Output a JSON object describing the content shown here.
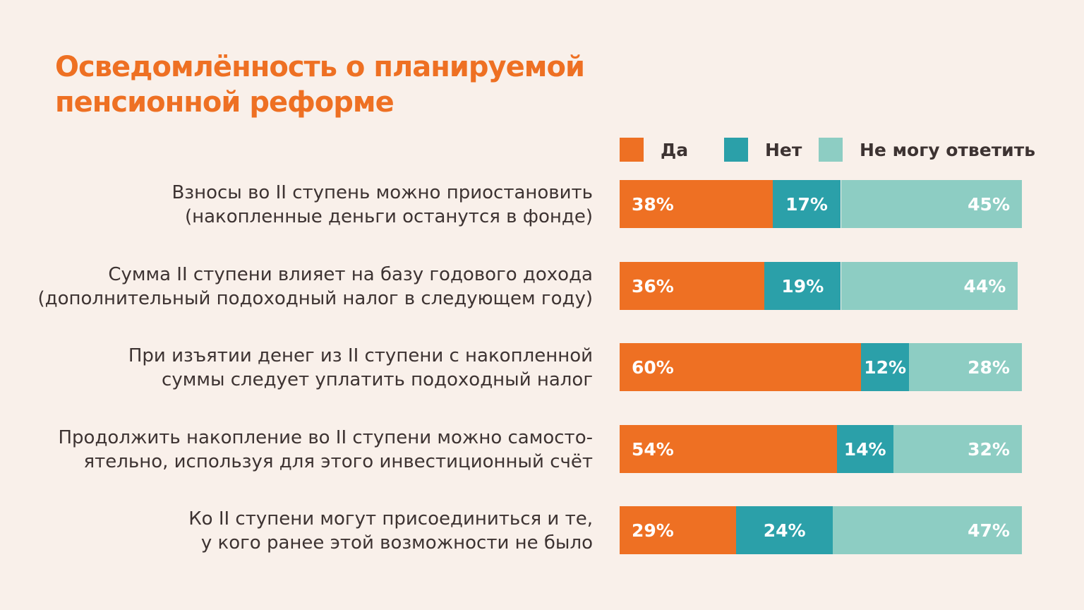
{
  "title": {
    "line1": "Осведомлённость о планируемой",
    "line2": "пенсионной реформе"
  },
  "colors": {
    "yes": "#ee7023",
    "no": "#2ba0a9",
    "unsure": "#8dcdc3",
    "background": "#f9f0ea",
    "title": "#ee7023",
    "text": "#3d3332"
  },
  "legend": [
    {
      "label": "Да",
      "color": "#ee7023"
    },
    {
      "label": "Нет",
      "color": "#2ba0a9"
    },
    {
      "label": "Не могу ответить",
      "color": "#8dcdc3"
    }
  ],
  "chart_data": {
    "type": "bar",
    "orientation": "horizontal",
    "stacked": true,
    "series": [
      {
        "name": "Да",
        "values": [
          38,
          36,
          60,
          54,
          29
        ]
      },
      {
        "name": "Нет",
        "values": [
          17,
          19,
          12,
          14,
          24
        ]
      },
      {
        "name": "Не могу ответить",
        "values": [
          45,
          44,
          28,
          32,
          47
        ]
      }
    ],
    "categories": [
      {
        "line1": "Взносы во II ступень можно приостановить",
        "line2": "(накопленные деньги останутся в фонде)"
      },
      {
        "line1": "Сумма II ступени влияет на базу годового дохода",
        "line2": "(дополнительный подоходный налог в следующем году)"
      },
      {
        "line1": "При изъятии денег из II ступени с накопленной",
        "line2": "суммы следует уплатить подоходный налог"
      },
      {
        "line1": "Продолжить накопление во II ступени можно самосто-",
        "line2": "ятельно, используя для этого инвестиционный счёт"
      },
      {
        "line1": "Ко II ступени могут присоединиться и те,",
        "line2": "у кого ранее этой возможности не было"
      }
    ],
    "value_labels": [
      [
        "38%",
        "17%",
        "45%"
      ],
      [
        "36%",
        "19%",
        "44%"
      ],
      [
        "60%",
        "12%",
        "28%"
      ],
      [
        "54%",
        "14%",
        "32%"
      ],
      [
        "29%",
        "24%",
        "47%"
      ]
    ],
    "xlim": [
      0,
      100
    ]
  }
}
